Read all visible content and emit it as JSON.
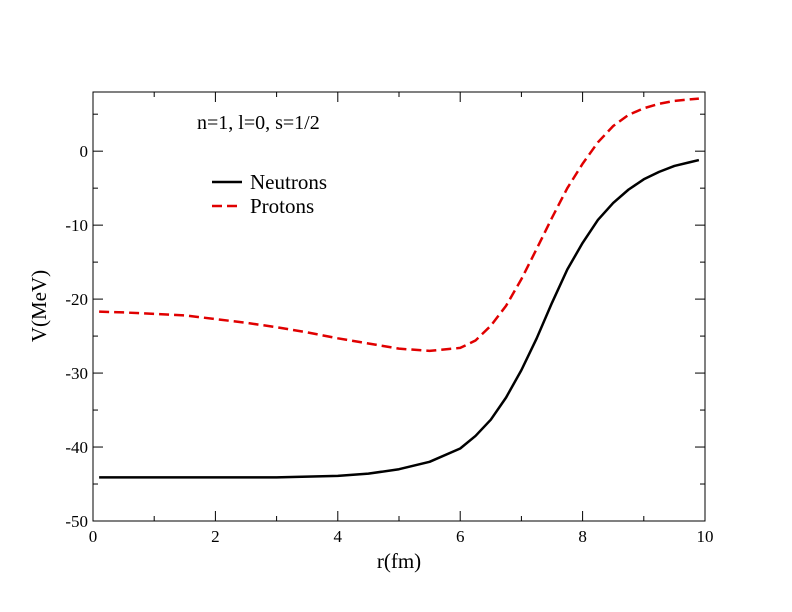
{
  "chart_data": {
    "type": "line",
    "xlabel": "r(fm)",
    "ylabel": "V(MeV)",
    "xlim": [
      0,
      10
    ],
    "ylim": [
      -50,
      8
    ],
    "x_ticks": [
      0,
      2,
      4,
      6,
      8,
      10
    ],
    "y_ticks": [
      -50,
      -40,
      -30,
      -20,
      -10,
      0
    ],
    "grid": false,
    "legend": "upper-left",
    "annotation": "n=1, l=0, s=1/2",
    "series": [
      {
        "name": "Neutrons",
        "color": "#000000",
        "style": "solid",
        "x": [
          0.1,
          0.5,
          1,
          1.5,
          2,
          2.5,
          3,
          3.5,
          4,
          4.5,
          5,
          5.5,
          6,
          6.25,
          6.5,
          6.75,
          7,
          7.25,
          7.5,
          7.75,
          8,
          8.25,
          8.5,
          8.75,
          9,
          9.25,
          9.5,
          9.75,
          9.9
        ],
        "y": [
          -44.1,
          -44.1,
          -44.1,
          -44.1,
          -44.1,
          -44.1,
          -44.1,
          -44.0,
          -43.9,
          -43.6,
          -43.0,
          -42.0,
          -40.2,
          -38.5,
          -36.3,
          -33.3,
          -29.6,
          -25.3,
          -20.5,
          -16.0,
          -12.4,
          -9.3,
          -7.0,
          -5.2,
          -3.8,
          -2.8,
          -2.0,
          -1.5,
          -1.2
        ]
      },
      {
        "name": "Protons",
        "color": "#e00000",
        "style": "dashed",
        "x": [
          0.1,
          0.5,
          1,
          1.5,
          2,
          2.5,
          3,
          3.5,
          4,
          4.5,
          5,
          5.5,
          6,
          6.25,
          6.5,
          6.75,
          7,
          7.25,
          7.5,
          7.75,
          8,
          8.25,
          8.5,
          8.75,
          9,
          9.25,
          9.5,
          9.75,
          9.9
        ],
        "y": [
          -21.7,
          -21.8,
          -22.0,
          -22.2,
          -22.7,
          -23.2,
          -23.8,
          -24.5,
          -25.3,
          -26.0,
          -26.7,
          -27.0,
          -26.6,
          -25.6,
          -23.6,
          -20.9,
          -17.3,
          -13.2,
          -9.0,
          -5.0,
          -1.7,
          1.2,
          3.4,
          4.9,
          5.8,
          6.4,
          6.8,
          7.0,
          7.1
        ]
      }
    ]
  }
}
